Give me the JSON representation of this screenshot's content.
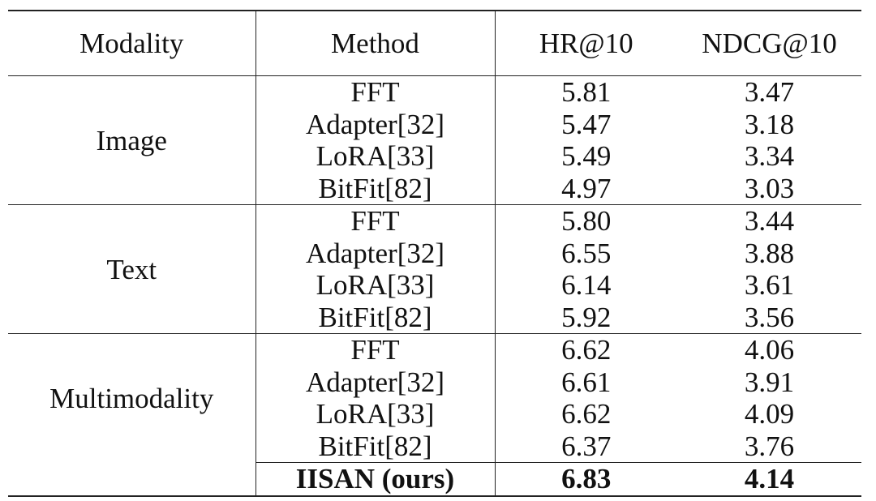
{
  "header": [
    "Modality",
    "Method",
    "HR@10",
    "NDCG@10"
  ],
  "groups": [
    {
      "modality": "Image",
      "rows": [
        [
          "FFT",
          "5.81",
          "3.47"
        ],
        [
          "Adapter[32]",
          "5.47",
          "3.18"
        ],
        [
          "LoRA[33]",
          "5.49",
          "3.34"
        ],
        [
          "BitFit[82]",
          "4.97",
          "3.03"
        ]
      ]
    },
    {
      "modality": "Text",
      "rows": [
        [
          "FFT",
          "5.80",
          "3.44"
        ],
        [
          "Adapter[32]",
          "6.55",
          "3.88"
        ],
        [
          "LoRA[33]",
          "6.14",
          "3.61"
        ],
        [
          "BitFit[82]",
          "5.92",
          "3.56"
        ]
      ]
    },
    {
      "modality": "Multimodality",
      "rows": [
        [
          "FFT",
          "6.62",
          "4.06"
        ],
        [
          "Adapter[32]",
          "6.61",
          "3.91"
        ],
        [
          "LoRA[33]",
          "6.62",
          "4.09"
        ],
        [
          "BitFit[82]",
          "6.37",
          "3.76"
        ]
      ]
    }
  ],
  "ours": [
    "IISAN (ours)",
    "6.83",
    "4.14"
  ]
}
